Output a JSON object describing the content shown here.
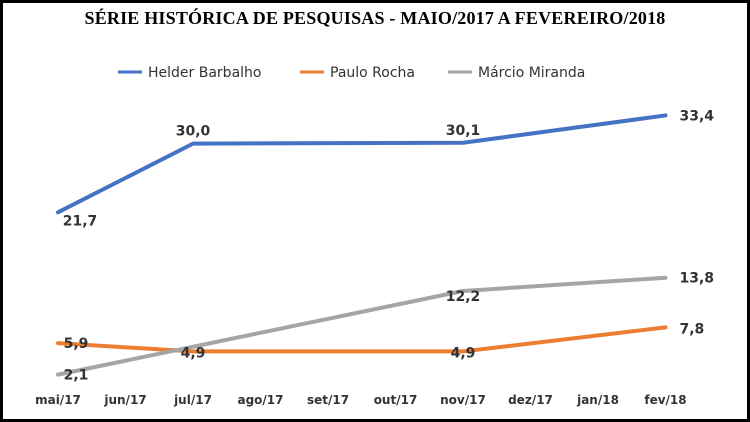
{
  "chart_data": {
    "type": "line",
    "title": "SÉRIE HISTÓRICA DE PESQUISAS - MAIO/2017 A FEVEREIRO/2018",
    "xlabel": "",
    "ylabel": "",
    "ylim": [
      0,
      36
    ],
    "grid": false,
    "legend_position": "top",
    "categories": [
      "mai/17",
      "jun/17",
      "jul/17",
      "ago/17",
      "set/17",
      "out/17",
      "nov/17",
      "dez/17",
      "jan/18",
      "fev/18"
    ],
    "series": [
      {
        "name": "Helder Barbalho",
        "color": "#4472C4",
        "points": [
          {
            "x": "mai/17",
            "y": 21.7,
            "label": "21,7"
          },
          {
            "x": "jul/17",
            "y": 30.0,
            "label": "30,0"
          },
          {
            "x": "nov/17",
            "y": 30.1,
            "label": "30,1"
          },
          {
            "x": "fev/18",
            "y": 33.4,
            "label": "33,4"
          }
        ]
      },
      {
        "name": "Paulo Rocha",
        "color": "#ED7D31",
        "points": [
          {
            "x": "mai/17",
            "y": 5.9,
            "label": "5,9"
          },
          {
            "x": "jul/17",
            "y": 4.9,
            "label": "4,9"
          },
          {
            "x": "nov/17",
            "y": 4.9,
            "label": "4,9"
          },
          {
            "x": "fev/18",
            "y": 7.8,
            "label": "7,8"
          }
        ]
      },
      {
        "name": "Márcio Miranda",
        "color": "#A5A5A5",
        "points": [
          {
            "x": "mai/17",
            "y": 2.1,
            "label": "2,1"
          },
          {
            "x": "nov/17",
            "y": 12.2,
            "label": "12,2"
          },
          {
            "x": "fev/18",
            "y": 13.8,
            "label": "13,8"
          }
        ]
      }
    ]
  }
}
